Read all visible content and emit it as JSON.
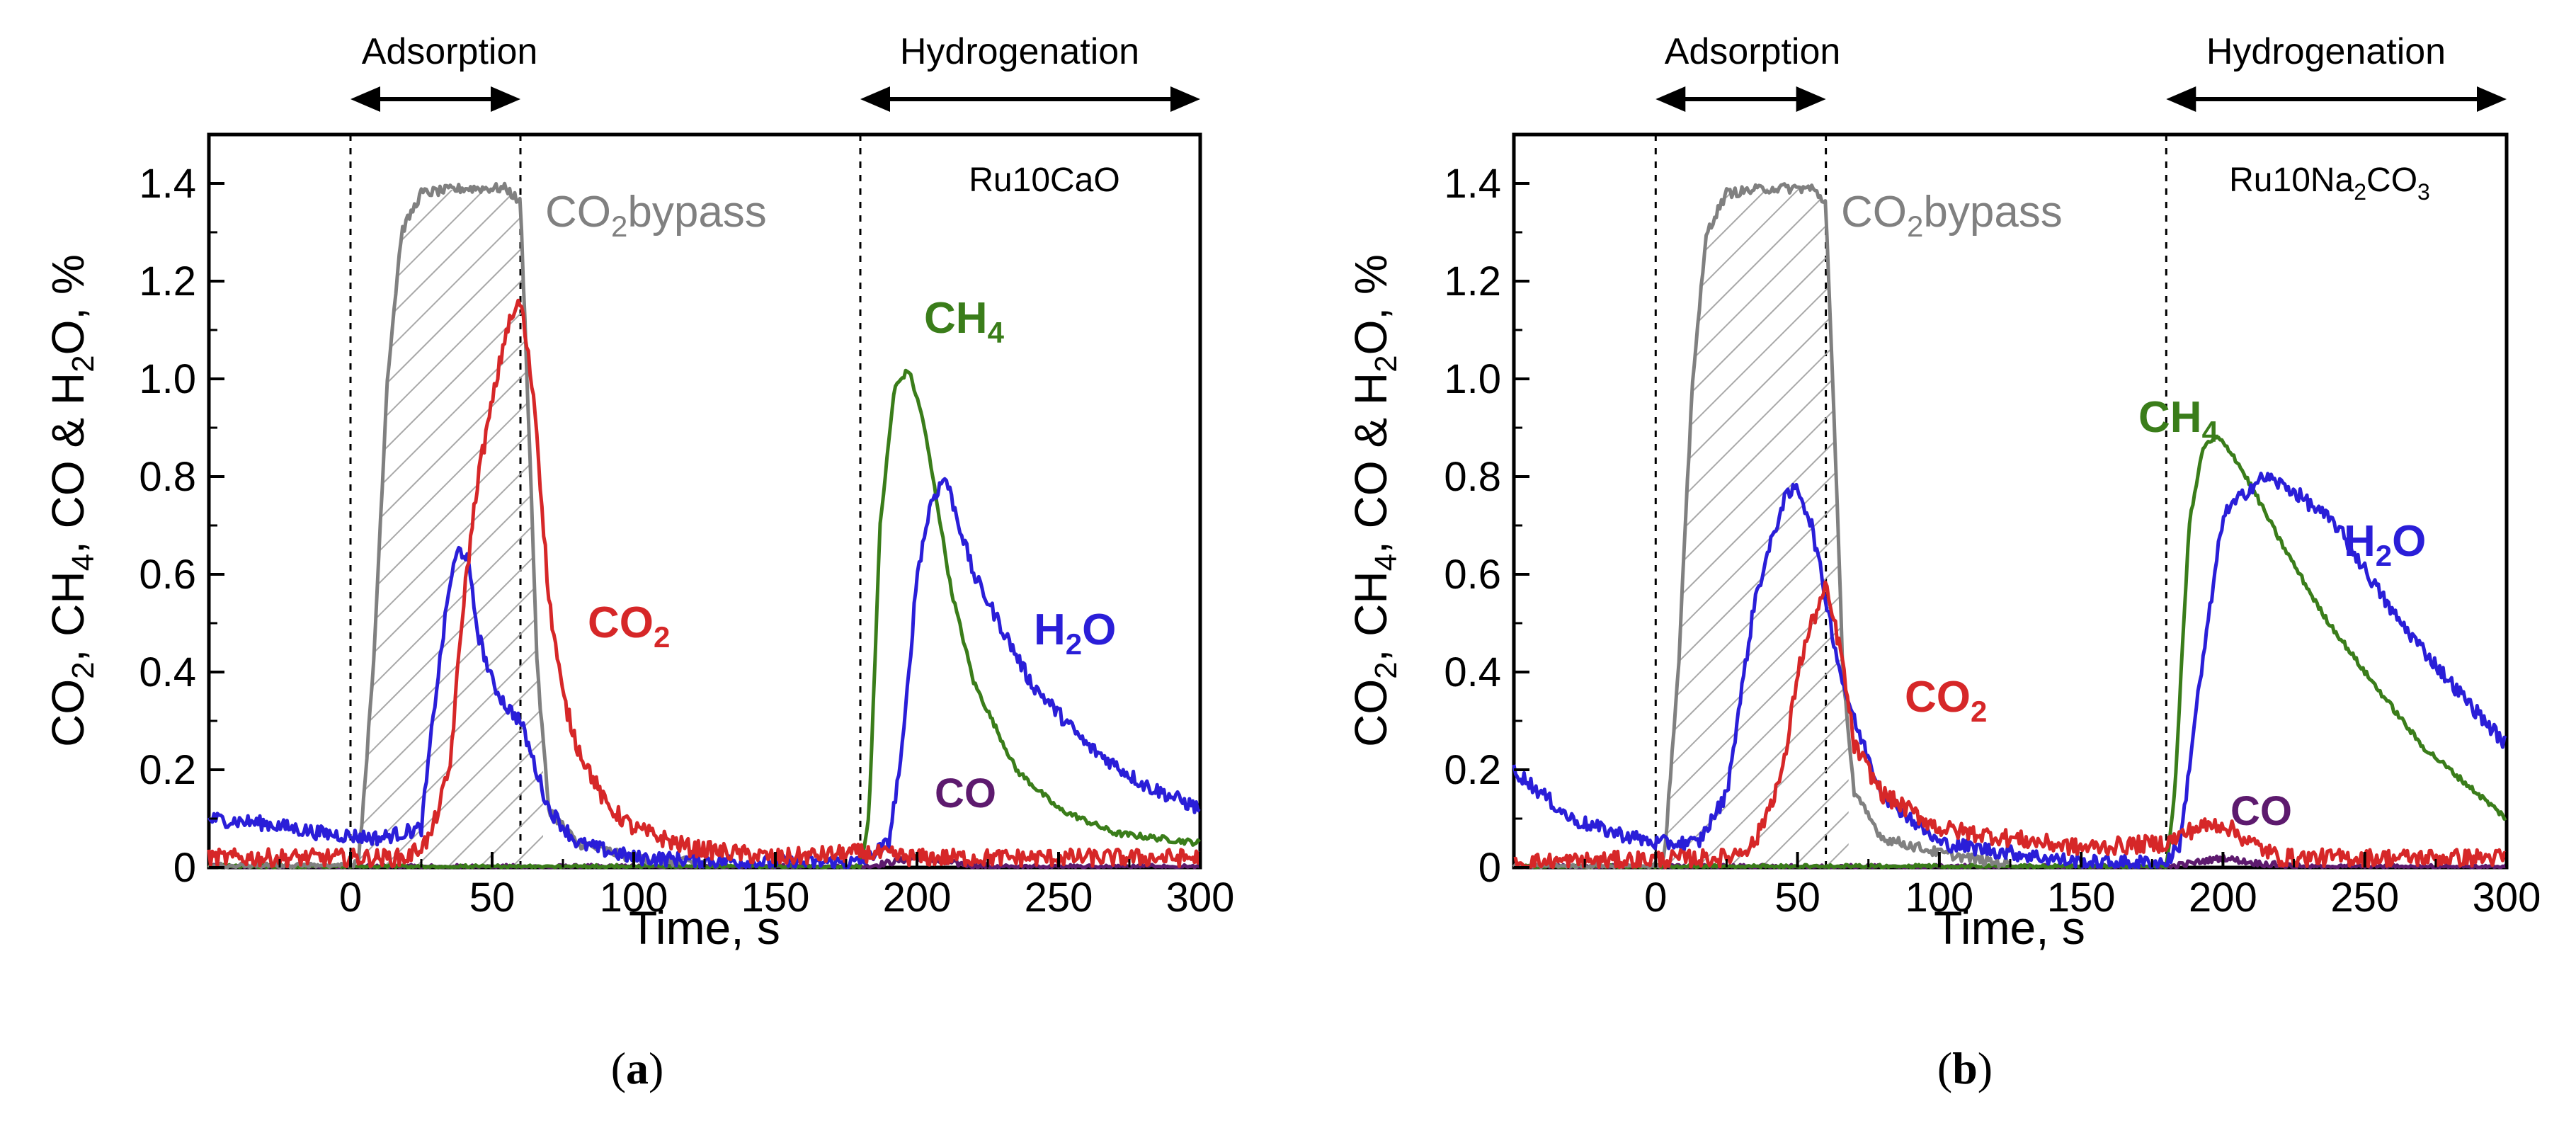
{
  "chart_data": [
    {
      "type": "line",
      "panel_label": "a",
      "sample": "Ru10CaO",
      "xlabel": "Time, s",
      "ylabel": "CO2, CH4, CO & H2O, %",
      "xlim": [
        -50,
        300
      ],
      "ylim": [
        0,
        1.5
      ],
      "xticks": [
        0,
        50,
        100,
        150,
        200,
        250,
        300
      ],
      "yticks": [
        0,
        0.2,
        0.4,
        0.6,
        0.8,
        1.0,
        1.2,
        1.4
      ],
      "ytick_labels": [
        "0",
        "0.2",
        "0.4",
        "0.6",
        "0.8",
        "1.0",
        "1.2",
        "1.4"
      ],
      "dashed_lines_x": [
        0,
        60,
        180
      ],
      "phases": [
        {
          "label": "Adsorption",
          "start": 0,
          "end": 60
        },
        {
          "label": "Hydrogenation",
          "start": 180,
          "end": 300
        }
      ],
      "hatched_region": {
        "start": 0,
        "end": 60,
        "series": "CO2 bypass"
      },
      "series": [
        {
          "name": "CO2 bypass",
          "color": "#808080",
          "x": [
            -50,
            0,
            3,
            8,
            13,
            18,
            25,
            40,
            55,
            60,
            63,
            66,
            70,
            80,
            100,
            120,
            150,
            180
          ],
          "y": [
            0,
            0,
            0.02,
            0.4,
            1.0,
            1.3,
            1.38,
            1.39,
            1.39,
            1.36,
            0.9,
            0.4,
            0.12,
            0.05,
            0.02,
            0.01,
            0.01,
            0.01
          ]
        },
        {
          "name": "CO2",
          "color": "#d62728",
          "x": [
            -50,
            20,
            28,
            35,
            40,
            45,
            50,
            55,
            60,
            65,
            70,
            75,
            80,
            90,
            100,
            120,
            150,
            180,
            200,
            230,
            260,
            300
          ],
          "y": [
            0.02,
            0.02,
            0.06,
            0.2,
            0.55,
            0.8,
            0.95,
            1.1,
            1.16,
            0.95,
            0.55,
            0.35,
            0.25,
            0.13,
            0.08,
            0.04,
            0.02,
            0.03,
            0.02,
            0.02,
            0.02,
            0.02
          ]
        },
        {
          "name": "H2O",
          "color": "#2a1ed8",
          "x": [
            -50,
            -30,
            -10,
            10,
            25,
            30,
            35,
            38,
            41,
            45,
            50,
            55,
            60,
            70,
            80,
            100,
            150,
            180,
            190,
            195,
            200,
            205,
            210,
            220,
            240,
            260,
            280,
            300
          ],
          "y": [
            0.1,
            0.09,
            0.07,
            0.06,
            0.08,
            0.35,
            0.58,
            0.65,
            0.64,
            0.48,
            0.38,
            0.33,
            0.3,
            0.12,
            0.05,
            0.02,
            0.01,
            0.01,
            0.05,
            0.25,
            0.6,
            0.75,
            0.8,
            0.6,
            0.38,
            0.25,
            0.17,
            0.12
          ]
        },
        {
          "name": "CH4",
          "color": "#3a7d1a",
          "x": [
            -50,
            180,
            183,
            187,
            192,
            197,
            202,
            207,
            212,
            220,
            235,
            250,
            270,
            300
          ],
          "y": [
            0,
            0,
            0.1,
            0.7,
            0.98,
            1.02,
            0.92,
            0.75,
            0.57,
            0.38,
            0.2,
            0.12,
            0.07,
            0.05
          ]
        },
        {
          "name": "CO",
          "color": "#5d1a6e",
          "x": [
            -50,
            180,
            190,
            200,
            210,
            230,
            300
          ],
          "y": [
            0,
            0,
            0.01,
            0.02,
            0.01,
            0.0,
            0.0
          ]
        }
      ],
      "annotations": [
        {
          "text": "CO2bypass",
          "color": "#808080"
        },
        {
          "text": "CO2",
          "color": "#d62728"
        },
        {
          "text": "H2O",
          "color": "#2a1ed8"
        },
        {
          "text": "CH4",
          "color": "#3a7d1a"
        },
        {
          "text": "CO",
          "color": "#5d1a6e"
        }
      ]
    },
    {
      "type": "line",
      "panel_label": "b",
      "sample": "Ru10Na2CO3",
      "xlabel": "Time, s",
      "ylabel": "CO2, CH4, CO & H2O, %",
      "xlim": [
        -50,
        300
      ],
      "ylim": [
        0,
        1.5
      ],
      "xticks": [
        0,
        50,
        100,
        150,
        200,
        250,
        300
      ],
      "yticks": [
        0,
        0.2,
        0.4,
        0.6,
        0.8,
        1.0,
        1.2,
        1.4
      ],
      "ytick_labels": [
        "0",
        "0.2",
        "0.4",
        "0.6",
        "0.8",
        "1.0",
        "1.2",
        "1.4"
      ],
      "dashed_lines_x": [
        0,
        60,
        180
      ],
      "phases": [
        {
          "label": "Adsorption",
          "start": 0,
          "end": 60
        },
        {
          "label": "Hydrogenation",
          "start": 180,
          "end": 300
        }
      ],
      "hatched_region": {
        "start": 0,
        "end": 60,
        "series": "CO2 bypass"
      },
      "series": [
        {
          "name": "CO2 bypass",
          "color": "#808080",
          "x": [
            -50,
            0,
            3,
            8,
            13,
            18,
            25,
            40,
            55,
            60,
            63,
            66,
            70,
            80,
            100,
            120
          ],
          "y": [
            0,
            0,
            0.02,
            0.4,
            1.0,
            1.3,
            1.38,
            1.39,
            1.39,
            1.36,
            0.9,
            0.4,
            0.15,
            0.06,
            0.03,
            0.01
          ]
        },
        {
          "name": "CO2",
          "color": "#d62728",
          "x": [
            -50,
            25,
            35,
            45,
            50,
            55,
            60,
            65,
            70,
            80,
            100,
            150,
            180,
            190,
            200,
            210,
            220,
            260,
            300
          ],
          "y": [
            0.01,
            0.02,
            0.05,
            0.2,
            0.4,
            0.5,
            0.57,
            0.45,
            0.25,
            0.15,
            0.08,
            0.04,
            0.05,
            0.08,
            0.09,
            0.05,
            0.02,
            0.02,
            0.02
          ]
        },
        {
          "name": "H2O",
          "color": "#2a1ed8",
          "x": [
            -50,
            -40,
            -30,
            -20,
            0,
            15,
            25,
            35,
            45,
            50,
            55,
            60,
            65,
            70,
            80,
            100,
            150,
            180,
            185,
            190,
            200,
            210,
            215,
            225,
            240,
            260,
            280,
            300
          ],
          "y": [
            0.2,
            0.15,
            0.1,
            0.08,
            0.05,
            0.05,
            0.15,
            0.55,
            0.75,
            0.78,
            0.7,
            0.55,
            0.4,
            0.3,
            0.15,
            0.05,
            0.01,
            0.01,
            0.05,
            0.3,
            0.72,
            0.78,
            0.8,
            0.77,
            0.7,
            0.52,
            0.38,
            0.25
          ]
        },
        {
          "name": "CH4",
          "color": "#3a7d1a",
          "x": [
            -50,
            180,
            183,
            188,
            193,
            198,
            203,
            210,
            220,
            235,
            250,
            270,
            300
          ],
          "y": [
            0,
            0,
            0.15,
            0.7,
            0.86,
            0.88,
            0.85,
            0.78,
            0.67,
            0.52,
            0.4,
            0.25,
            0.1
          ]
        },
        {
          "name": "CO",
          "color": "#5d1a6e",
          "x": [
            -50,
            180,
            190,
            200,
            210,
            230,
            300
          ],
          "y": [
            0,
            0,
            0.01,
            0.02,
            0.01,
            0.0,
            0.0
          ]
        }
      ],
      "annotations": [
        {
          "text": "CO2bypass",
          "color": "#808080"
        },
        {
          "text": "CO2",
          "color": "#d62728"
        },
        {
          "text": "H2O",
          "color": "#2a1ed8"
        },
        {
          "text": "CH4",
          "color": "#3a7d1a"
        },
        {
          "text": "CO",
          "color": "#5d1a6e"
        }
      ]
    }
  ]
}
